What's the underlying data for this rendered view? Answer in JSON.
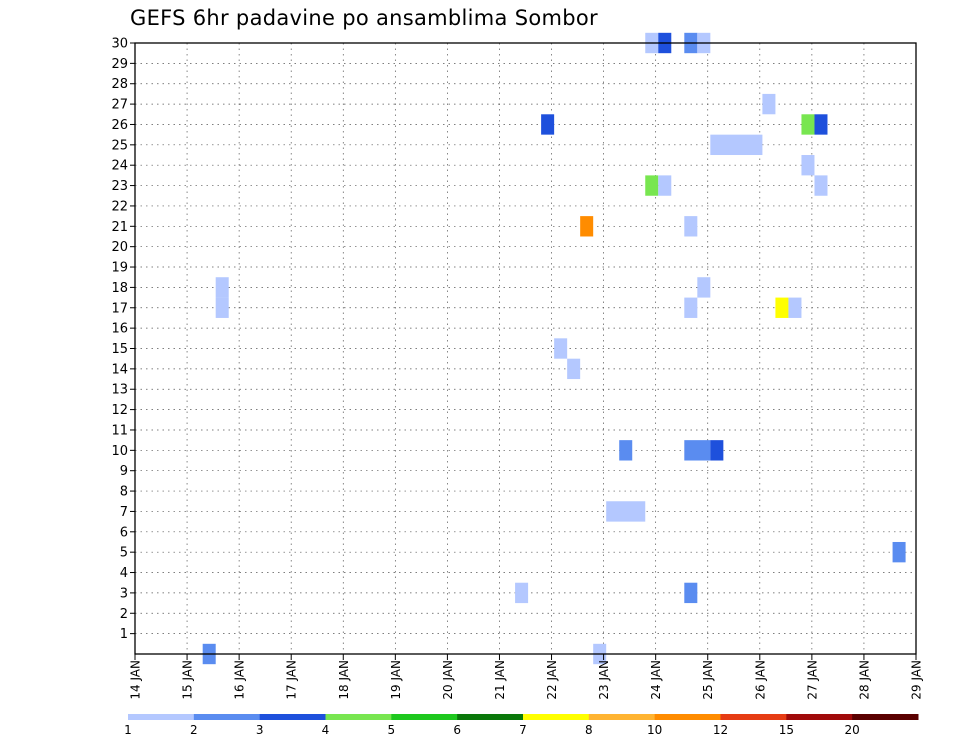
{
  "title": "GEFS 6hr padavine po ansamblima Sombor",
  "chart_data": {
    "type": "heatmap",
    "title": "GEFS 6hr padavine po ansamblima Sombor",
    "x_unit": "days",
    "x_start_label": "14 JAN",
    "x_ticks": [
      "14 JAN",
      "15 JAN",
      "16 JAN",
      "17 JAN",
      "18 JAN",
      "19 JAN",
      "20 JAN",
      "21 JAN",
      "22 JAN",
      "23 JAN",
      "24 JAN",
      "25 JAN",
      "26 JAN",
      "27 JAN",
      "28 JAN",
      "29 JAN"
    ],
    "xlim": [
      0,
      15
    ],
    "ylim": [
      0,
      30
    ],
    "y_ticks": [
      1,
      2,
      3,
      4,
      5,
      6,
      7,
      8,
      9,
      10,
      11,
      12,
      13,
      14,
      15,
      16,
      17,
      18,
      19,
      20,
      21,
      22,
      23,
      24,
      25,
      26,
      27,
      28,
      29,
      30
    ],
    "grid": true,
    "colorbar": {
      "labels": [
        "1",
        "2",
        "3",
        "4",
        "5",
        "6",
        "7",
        "8",
        "10",
        "12",
        "15",
        "20"
      ],
      "colors": [
        "#b4c8ff",
        "#5a8cf0",
        "#1e50dc",
        "#78e650",
        "#1ec81e",
        "#0a780a",
        "#ffff00",
        "#ffb432",
        "#ff8c00",
        "#e63c14",
        "#a00a0a",
        "#5a0000"
      ]
    },
    "cells": [
      {
        "x0": 1.3,
        "x1": 1.55,
        "y": 0,
        "v": 2
      },
      {
        "x0": 1.55,
        "x1": 1.8,
        "y": 17,
        "v": 1
      },
      {
        "x0": 1.55,
        "x1": 1.8,
        "y": 18,
        "v": 1
      },
      {
        "x0": 7.3,
        "x1": 7.55,
        "y": 3,
        "v": 1
      },
      {
        "x0": 7.8,
        "x1": 8.05,
        "y": 26,
        "v": 3
      },
      {
        "x0": 8.05,
        "x1": 8.3,
        "y": 15,
        "v": 1
      },
      {
        "x0": 8.3,
        "x1": 8.55,
        "y": 14,
        "v": 1
      },
      {
        "x0": 8.55,
        "x1": 8.8,
        "y": 21,
        "v": 10
      },
      {
        "x0": 8.8,
        "x1": 9.05,
        "y": 0,
        "v": 1
      },
      {
        "x0": 9.05,
        "x1": 9.8,
        "y": 7,
        "v": 1
      },
      {
        "x0": 9.3,
        "x1": 9.55,
        "y": 10,
        "v": 2
      },
      {
        "x0": 9.8,
        "x1": 10.05,
        "y": 23,
        "v": 4
      },
      {
        "x0": 10.05,
        "x1": 10.3,
        "y": 23,
        "v": 1
      },
      {
        "x0": 9.8,
        "x1": 10.05,
        "y": 30,
        "v": 1
      },
      {
        "x0": 10.05,
        "x1": 10.3,
        "y": 30,
        "v": 3
      },
      {
        "x0": 10.55,
        "x1": 10.8,
        "y": 30,
        "v": 2
      },
      {
        "x0": 10.8,
        "x1": 11.05,
        "y": 30,
        "v": 1
      },
      {
        "x0": 10.55,
        "x1": 10.8,
        "y": 21,
        "v": 1
      },
      {
        "x0": 10.55,
        "x1": 10.8,
        "y": 17,
        "v": 1
      },
      {
        "x0": 10.8,
        "x1": 11.05,
        "y": 18,
        "v": 1
      },
      {
        "x0": 10.55,
        "x1": 11.05,
        "y": 10,
        "v": 2
      },
      {
        "x0": 11.05,
        "x1": 11.3,
        "y": 10,
        "v": 3
      },
      {
        "x0": 10.55,
        "x1": 10.8,
        "y": 3,
        "v": 2
      },
      {
        "x0": 11.05,
        "x1": 12.05,
        "y": 25,
        "v": 1
      },
      {
        "x0": 12.05,
        "x1": 12.3,
        "y": 27,
        "v": 1
      },
      {
        "x0": 12.3,
        "x1": 12.55,
        "y": 17,
        "v": 7
      },
      {
        "x0": 12.55,
        "x1": 12.8,
        "y": 17,
        "v": 1
      },
      {
        "x0": 12.8,
        "x1": 13.05,
        "y": 26,
        "v": 4
      },
      {
        "x0": 13.05,
        "x1": 13.3,
        "y": 26,
        "v": 3
      },
      {
        "x0": 12.8,
        "x1": 13.05,
        "y": 24,
        "v": 1
      },
      {
        "x0": 13.05,
        "x1": 13.3,
        "y": 23,
        "v": 1
      },
      {
        "x0": 14.55,
        "x1": 14.8,
        "y": 5,
        "v": 2
      }
    ]
  }
}
